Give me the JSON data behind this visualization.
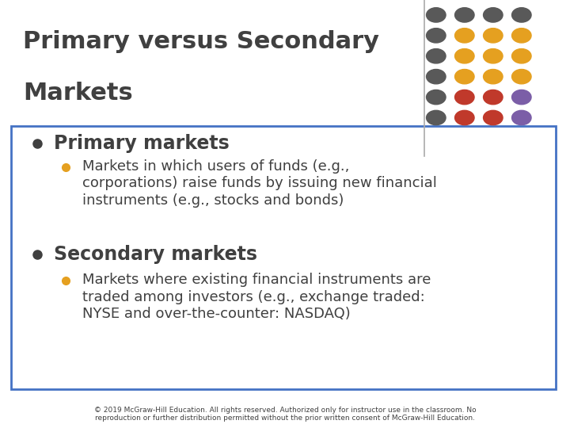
{
  "title_line1": "Primary versus Secondary",
  "title_line2": "Markets",
  "title_color": "#404040",
  "title_fontsize": 22,
  "background_color": "#ffffff",
  "box_edge_color": "#4472c4",
  "box_facecolor": "#ffffff",
  "bullet1_header": "Primary markets",
  "bullet1_text_line1": "Markets in which users of funds (e.g.,",
  "bullet1_text_line2": "corporations) raise funds by issuing new financial",
  "bullet1_text_line3": "instruments (e.g., stocks and bonds)",
  "bullet2_header": "Secondary markets",
  "bullet2_text_line1": "Markets where existing financial instruments are",
  "bullet2_text_line2": "traded among investors (e.g., exchange traded:",
  "bullet2_text_line3": "NYSE and over-the-counter: NASDAQ)",
  "footer": "© 2019 McGraw-Hill Education. All rights reserved. Authorized only for instructor use in the classroom. No\nreproduction or further distribution permitted without the prior written consent of McGraw-Hill Education.",
  "footer_fontsize": 6.5,
  "footer_color": "#404040",
  "bullet_header_fontsize": 17,
  "bullet_text_fontsize": 13,
  "main_bullet_color": "#404040",
  "sub_bullet_color": "#e5a020",
  "separator_color": "#aaaaaa",
  "dot_grid": [
    [
      "#595959",
      "#595959",
      "#595959",
      "#595959"
    ],
    [
      "#595959",
      "#e5a020",
      "#e5a020",
      "#e5a020"
    ],
    [
      "#595959",
      "#e5a020",
      "#e5a020",
      "#e5a020"
    ],
    [
      "#595959",
      "#e5a020",
      "#e5a020",
      "#e5a020"
    ],
    [
      "#595959",
      "#c0392b",
      "#c0392b",
      "#7b5ea7"
    ],
    [
      "#595959",
      "#c0392b",
      "#c0392b",
      "#7b5ea7"
    ]
  ]
}
